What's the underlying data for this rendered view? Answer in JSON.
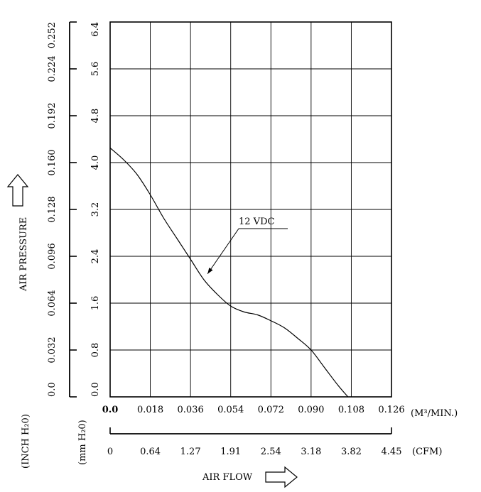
{
  "chart_data": {
    "type": "line",
    "xlabel": "AIR FLOW",
    "ylabel": "AIR PRESSURE",
    "x_unit_primary": "(M³/MIN.)",
    "x_unit_secondary": "(CFM)",
    "y_unit_primary": "(mm H₂0)",
    "y_unit_secondary": "(INCH H₂0)",
    "xlim": [
      0,
      0.126
    ],
    "ylim": [
      0,
      6.4
    ],
    "grid": true,
    "x_ticks": [
      "0.0",
      "0.018",
      "0.036",
      "0.054",
      "0.072",
      "0.090",
      "0.108",
      "0.126"
    ],
    "x_ticks_cfm": [
      "0",
      "0.64",
      "1.27",
      "1.91",
      "2.54",
      "3.18",
      "3.82",
      "4.45"
    ],
    "y_ticks_mm": [
      "0.0",
      "0.8",
      "1.6",
      "2.4",
      "3.2",
      "4.0",
      "4.8",
      "5.6",
      "6.4"
    ],
    "y_ticks_inch": [
      "0.0",
      "0.032",
      "0.064",
      "0.096",
      "0.128",
      "0.160",
      "0.192",
      "0.224",
      "0.252"
    ],
    "series": [
      {
        "name": "12 VDC",
        "x": [
          0,
          0.006,
          0.012,
          0.018,
          0.024,
          0.03,
          0.036,
          0.042,
          0.048,
          0.054,
          0.06,
          0.066,
          0.072,
          0.078,
          0.084,
          0.09,
          0.096,
          0.102,
          0.1065
        ],
        "y": [
          4.25,
          4.05,
          3.8,
          3.45,
          3.05,
          2.7,
          2.35,
          2.0,
          1.75,
          1.55,
          1.45,
          1.4,
          1.3,
          1.18,
          1.0,
          0.8,
          0.5,
          0.2,
          0.0
        ]
      }
    ]
  },
  "annotation_label": "12 VDC"
}
